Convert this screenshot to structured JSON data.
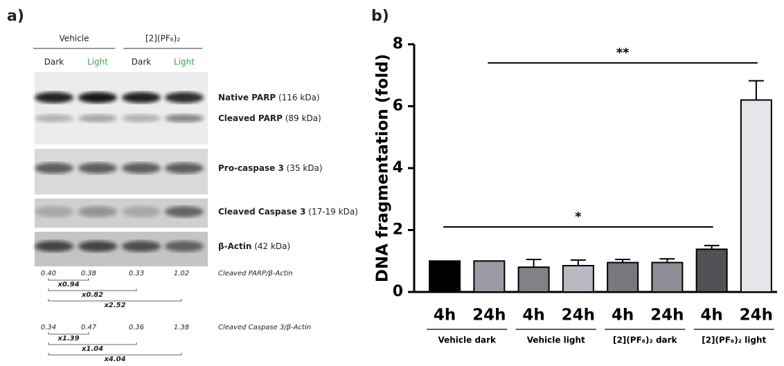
{
  "panel_a": {
    "label": "a)",
    "groups": [
      "Vehicle",
      "[2](PF₆)₂"
    ],
    "lanes": [
      "Dark",
      "Light",
      "Dark",
      "Light"
    ],
    "bands": [
      {
        "name": "Native PARP",
        "size": "(116 kDa)"
      },
      {
        "name": "Cleaved PARP",
        "size": "(89 kDa)"
      },
      {
        "name": "Pro-caspase 3",
        "size": "(35 kDa)"
      },
      {
        "name": "Cleaved Caspase 3",
        "size": "(17-19 kDa)"
      },
      {
        "name": "β-Actin",
        "size": "(42 kDa)"
      }
    ],
    "ratios": [
      {
        "label": "Cleaved PARP/β-Actin",
        "values": [
          "0.40",
          "0.38",
          "0.33",
          "1.02"
        ],
        "folds": [
          "x0.94",
          "x0.82",
          "x2.52"
        ]
      },
      {
        "label": "Cleaved Caspase 3/β-Actin",
        "values": [
          "0.34",
          "0.47",
          "0.36",
          "1.38"
        ],
        "folds": [
          "x1.39",
          "x1.04",
          "x4.04"
        ]
      }
    ]
  },
  "chart_data": {
    "type": "bar",
    "label": "b)",
    "y_label": "DNA fragmentation (fold)",
    "categories": [
      "4h",
      "24h",
      "4h",
      "24h",
      "4h",
      "24h",
      "4h",
      "24h"
    ],
    "groups": [
      "Vehicle dark",
      "Vehicle light",
      "[2](PF₆)₂ dark",
      "[2](PF₆)₂ light"
    ],
    "values": [
      1.0,
      1.0,
      0.8,
      0.85,
      0.95,
      0.95,
      1.38,
      6.2
    ],
    "errors": [
      null,
      null,
      0.25,
      0.18,
      0.1,
      0.12,
      0.12,
      0.62
    ],
    "colors": [
      "#000000",
      "#9a9aa4",
      "#818188",
      "#b9b9c1",
      "#77777e",
      "#8e8e97",
      "#4f5157",
      "#e6e6ea"
    ],
    "ylim": [
      0,
      8
    ],
    "yticks": [
      0,
      2,
      4,
      6,
      8
    ],
    "annotations": [
      {
        "text": "**",
        "from": 1,
        "to": 7,
        "y": 7.4
      },
      {
        "text": "*",
        "from": 0,
        "to": 6,
        "y": 2.1
      }
    ]
  }
}
